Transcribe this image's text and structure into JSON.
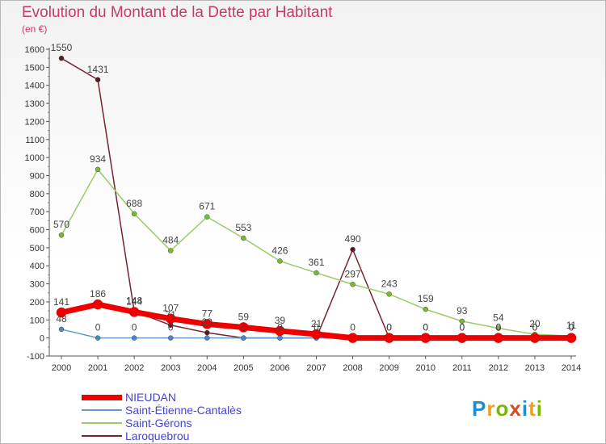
{
  "header": {
    "title": "Evolution du Montant de la Dette par Habitant",
    "subtitle": "(en €)"
  },
  "logo": {
    "text": "Proxiti",
    "colors": [
      "#1f8bd1",
      "#f0a020",
      "#7ab800",
      "#d84a20",
      "#1f8bd1",
      "#f0a020",
      "#7ab800"
    ]
  },
  "chart_data": {
    "type": "line",
    "x": [
      2000,
      2001,
      2002,
      2003,
      2004,
      2005,
      2006,
      2007,
      2008,
      2009,
      2010,
      2011,
      2012,
      2013,
      2014
    ],
    "ylim": [
      -100,
      1600
    ],
    "yticks": [
      -100,
      0,
      100,
      200,
      300,
      400,
      500,
      600,
      700,
      800,
      900,
      1000,
      1100,
      1200,
      1300,
      1400,
      1500,
      1600
    ],
    "grid": false,
    "legend_position": "bottom-left",
    "series": [
      {
        "name": "Laroquebrou",
        "color": "#7a2330",
        "marker": "#5a1a22",
        "width": 1.5,
        "values": [
          1550,
          1431,
          148,
          71,
          29,
          0,
          0,
          0,
          490,
          0,
          0,
          0,
          0,
          0,
          0
        ],
        "labels": [
          "1550",
          "1431",
          "148",
          "71",
          "29",
          "0",
          "0",
          "0",
          "490",
          "0",
          "0",
          "0",
          "0",
          "0",
          "0"
        ]
      },
      {
        "name": "Saint-Gérons",
        "color": "#99cc66",
        "marker": "#77bb33",
        "width": 1.5,
        "values": [
          570,
          934,
          688,
          484,
          671,
          553,
          426,
          361,
          297,
          243,
          159,
          93,
          54,
          20,
          11
        ],
        "labels": [
          "570",
          "934",
          "688",
          "484",
          "671",
          "553",
          "426",
          "361",
          "297",
          "243",
          "159",
          "93",
          "54",
          "20",
          "11"
        ]
      },
      {
        "name": "Saint-Étienne-Cantalès",
        "color": "#6699cc",
        "marker": "#4a86c8",
        "width": 1.5,
        "values": [
          48,
          0,
          0,
          0,
          0,
          0,
          0,
          0,
          0,
          0,
          0,
          0,
          0,
          0,
          0
        ],
        "labels": [
          "48",
          "0",
          "0",
          "0",
          "",
          "",
          "",
          "",
          "",
          "",
          "",
          "",
          "",
          "",
          ""
        ]
      },
      {
        "name": "NIEUDAN",
        "color": "#ee0000",
        "marker": "#ee0000",
        "width": 7,
        "values": [
          141,
          186,
          144,
          107,
          77,
          59,
          39,
          21,
          0,
          0,
          0,
          0,
          0,
          0,
          0
        ],
        "labels": [
          "141",
          "186",
          "144",
          "107",
          "77",
          "59",
          "39",
          "21",
          "0",
          "0",
          "0",
          "0",
          "0",
          "0",
          "0"
        ]
      }
    ],
    "legend": [
      {
        "name": "NIEUDAN",
        "color": "#ee0000",
        "width": 7
      },
      {
        "name": "Saint-Étienne-Cantalès",
        "color": "#6699cc",
        "width": 1.5
      },
      {
        "name": "Saint-Gérons",
        "color": "#99cc66",
        "width": 1.5
      },
      {
        "name": "Laroquebrou",
        "color": "#7a2330",
        "width": 1.5
      }
    ]
  }
}
